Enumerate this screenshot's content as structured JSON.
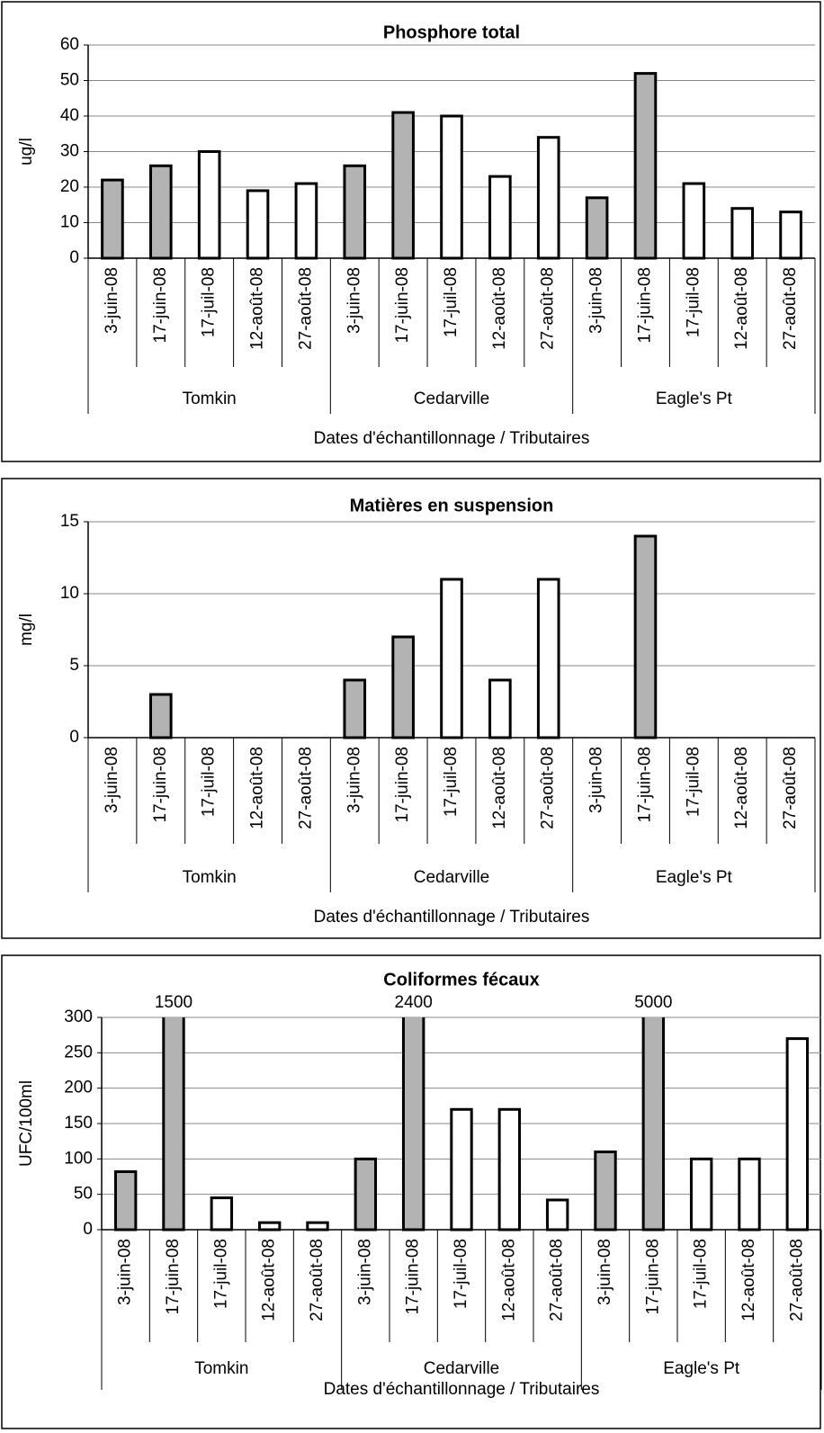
{
  "chart_data": [
    {
      "type": "bar",
      "title": "Phosphore total",
      "y_label": "ug/l",
      "x_label": "Dates d'échantillonnage / Tributaires",
      "categories": [
        "3-juin-08",
        "17-juin-08",
        "17-juil-08",
        "12-août-08",
        "27-août-08",
        "3-juin-08",
        "17-juin-08",
        "17-juil-08",
        "12-août-08",
        "27-août-08",
        "3-juin-08",
        "17-juin-08",
        "17-juil-08",
        "12-août-08",
        "27-août-08"
      ],
      "groups": [
        "Tomkin",
        "Cedarville",
        "Eagle's Pt"
      ],
      "values": [
        22,
        26,
        30,
        19,
        21,
        26,
        41,
        40,
        23,
        34,
        17,
        52,
        21,
        14,
        13
      ],
      "colors": [
        "#b3b3b3",
        "#b3b3b3",
        "#ffffff",
        "#ffffff",
        "#ffffff",
        "#b3b3b3",
        "#b3b3b3",
        "#ffffff",
        "#ffffff",
        "#ffffff",
        "#b3b3b3",
        "#b3b3b3",
        "#ffffff",
        "#ffffff",
        "#ffffff"
      ],
      "ylim": [
        0,
        60
      ],
      "yticks": [
        0,
        10,
        20,
        30,
        40,
        50,
        60
      ],
      "grid": true
    },
    {
      "type": "bar",
      "title": "Matières en suspension",
      "y_label": "mg/l",
      "x_label": "Dates d'échantillonnage / Tributaires",
      "categories": [
        "3-juin-08",
        "17-juin-08",
        "17-juil-08",
        "12-août-08",
        "27-août-08",
        "3-juin-08",
        "17-juin-08",
        "17-juil-08",
        "12-août-08",
        "27-août-08",
        "3-juin-08",
        "17-juin-08",
        "17-juil-08",
        "12-août-08",
        "27-août-08"
      ],
      "groups": [
        "Tomkin",
        "Cedarville",
        "Eagle's Pt"
      ],
      "values": [
        null,
        3,
        null,
        null,
        null,
        4,
        7,
        11,
        4,
        11,
        null,
        14,
        null,
        null,
        null
      ],
      "colors": [
        "#b3b3b3",
        "#b3b3b3",
        "#ffffff",
        "#ffffff",
        "#ffffff",
        "#b3b3b3",
        "#b3b3b3",
        "#ffffff",
        "#ffffff",
        "#ffffff",
        "#b3b3b3",
        "#b3b3b3",
        "#ffffff",
        "#ffffff",
        "#ffffff"
      ],
      "ylim": [
        0,
        15
      ],
      "yticks": [
        0,
        5,
        10,
        15
      ],
      "grid": true
    },
    {
      "type": "bar",
      "title": "Coliformes fécaux",
      "y_label": "UFC/100ml",
      "x_label": "Dates d'échantillonnage / Tributaires",
      "categories": [
        "3-juin-08",
        "17-juin-08",
        "17-juil-08",
        "12-août-08",
        "27-août-08",
        "3-juin-08",
        "17-juin-08",
        "17-juil-08",
        "12-août-08",
        "27-août-08",
        "3-juin-08",
        "17-juin-08",
        "17-juil-08",
        "12-août-08",
        "27-août-08"
      ],
      "groups": [
        "Tomkin",
        "Cedarville",
        "Eagle's Pt"
      ],
      "values": [
        82,
        1500,
        45,
        10,
        10,
        100,
        2400,
        170,
        170,
        42,
        110,
        5000,
        100,
        100,
        270
      ],
      "value_labels": [
        null,
        "1500",
        null,
        null,
        null,
        null,
        "2400",
        null,
        null,
        null,
        null,
        "5000",
        null,
        null,
        null
      ],
      "colors": [
        "#b3b3b3",
        "#b3b3b3",
        "#ffffff",
        "#ffffff",
        "#ffffff",
        "#b3b3b3",
        "#b3b3b3",
        "#ffffff",
        "#ffffff",
        "#ffffff",
        "#b3b3b3",
        "#b3b3b3",
        "#ffffff",
        "#ffffff",
        "#ffffff"
      ],
      "ylim": [
        0,
        300
      ],
      "yticks": [
        0,
        50,
        100,
        150,
        200,
        250,
        300
      ],
      "grid": true
    }
  ]
}
